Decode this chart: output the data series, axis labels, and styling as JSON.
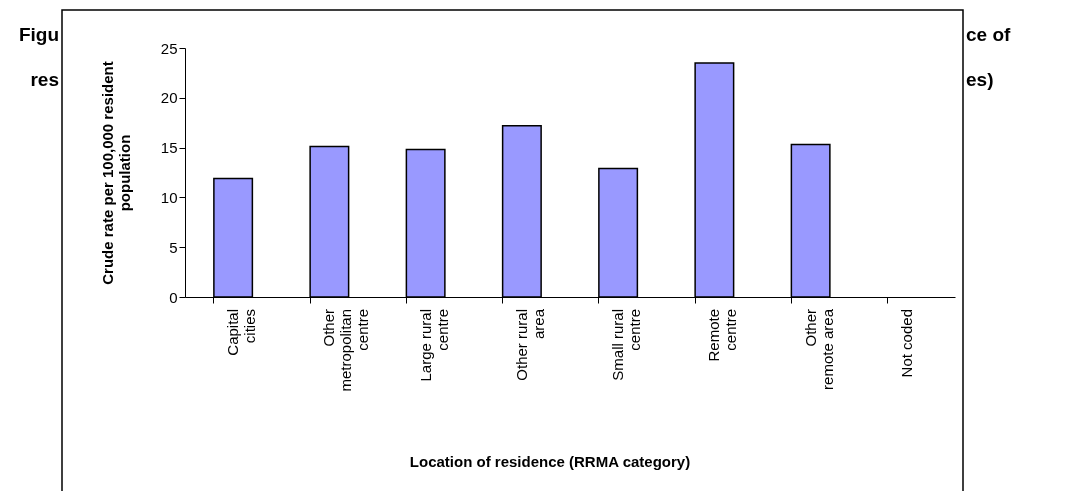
{
  "chart_data": {
    "type": "bar",
    "categories": [
      "Capital cities",
      "Other metropolitan centre",
      "Large rural centre",
      "Other rural area",
      "Small rural centre",
      "Remote centre",
      "Other remote area",
      "Not coded"
    ],
    "values": [
      11.9,
      15.1,
      14.8,
      17.2,
      12.9,
      23.5,
      15.3,
      null
    ],
    "color": "#9999ff",
    "ylim": [
      0,
      25
    ],
    "yticks": [
      0,
      5,
      10,
      15,
      20,
      25
    ],
    "xlabel": "Location of residence (RRMA category)",
    "ylabel": "Crude rate per 100,000 resident population",
    "annotations": [
      "Figu",
      "res",
      "ce of",
      "es)"
    ],
    "grid": false
  }
}
